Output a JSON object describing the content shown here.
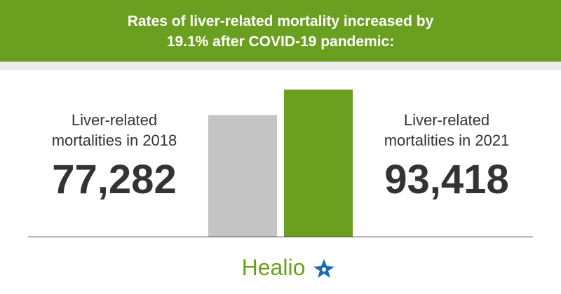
{
  "chart_data": {
    "type": "bar",
    "title": "Rates of liver-related mortality increased by 19.1% after COVID-19 pandemic:",
    "categories": [
      "Liver-related mortalities in 2018",
      "Liver-related mortalities in 2021"
    ],
    "values": [
      77282,
      93418
    ],
    "value_labels": [
      "77,282",
      "93,418"
    ],
    "colors": [
      "#c4c4c4",
      "#6a9f1f"
    ]
  },
  "footer": {
    "logo": "Healio"
  }
}
